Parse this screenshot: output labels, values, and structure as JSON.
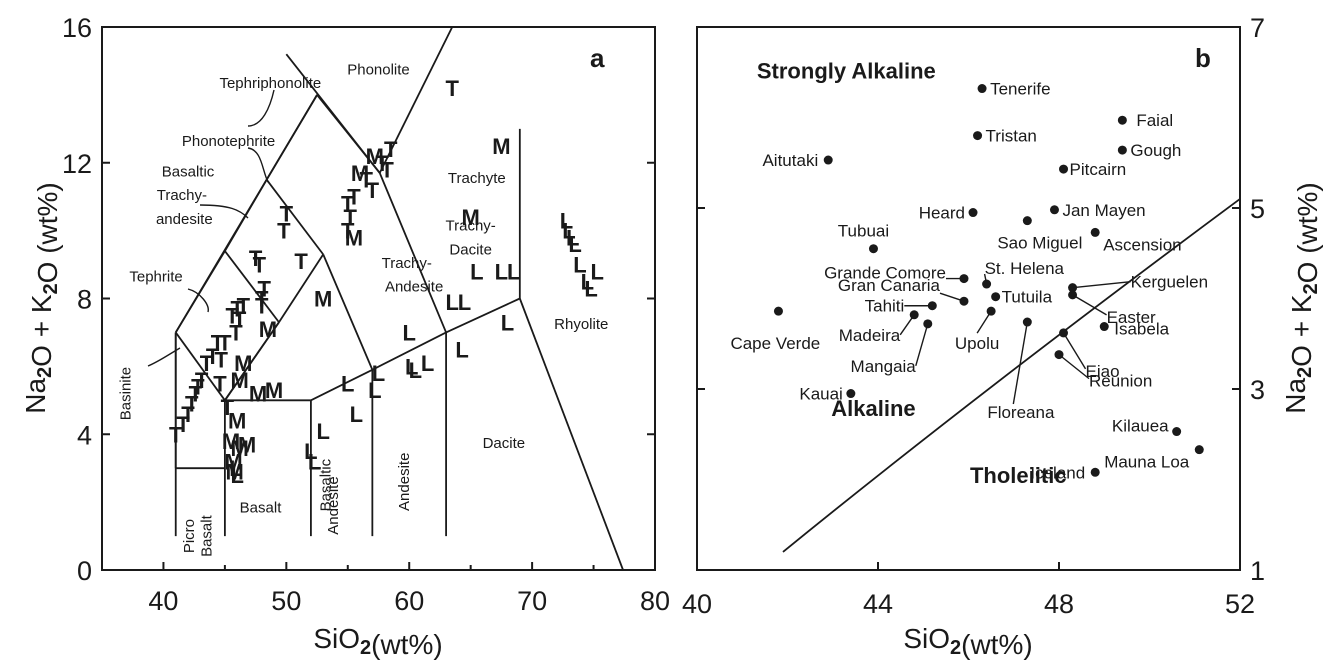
{
  "chart_data": [
    {
      "type": "scatter",
      "panel_label": "a",
      "xlabel": "SiO2(wt%)",
      "ylabel": "Na2O + K2O (wt%)",
      "xlim": [
        35,
        80
      ],
      "ylim": [
        0,
        16
      ],
      "xticks": [
        "40",
        "50",
        "60",
        "70",
        "80"
      ],
      "yticks": [
        "0",
        "4",
        "8",
        "12",
        "16"
      ],
      "fields": [
        {
          "name": "Phonolite",
          "x": 57.5,
          "y": 14.6
        },
        {
          "name": "Tephriphonolite",
          "x": 48.7,
          "y": 14.2
        },
        {
          "name": "Phonotephrite",
          "x": 45.3,
          "y": 12.5
        },
        {
          "name": "Basaltic",
          "x": 42.0,
          "y": 11.6
        },
        {
          "name": "Trachy-",
          "x": 41.5,
          "y": 10.9
        },
        {
          "name": "andesite",
          "x": 41.7,
          "y": 10.2
        },
        {
          "name": "Trachyte",
          "x": 65.5,
          "y": 11.4
        },
        {
          "name": "Trachy-",
          "x": 65.0,
          "y": 10.0
        },
        {
          "name": "Dacite",
          "x": 65.0,
          "y": 9.3
        },
        {
          "name": "Tephrite",
          "x": 39.4,
          "y": 8.5
        },
        {
          "name": "Trachy-",
          "x": 59.8,
          "y": 8.9
        },
        {
          "name": "Andesite",
          "x": 60.4,
          "y": 8.2
        },
        {
          "name": "Basinite",
          "x": 37.3,
          "y": 5.2
        },
        {
          "name": "Rhyolite",
          "x": 74.0,
          "y": 7.1
        },
        {
          "name": "Basaltic",
          "x": 53.6,
          "y": 2.5
        },
        {
          "name": "Andesite",
          "x": 54.2,
          "y": 1.9
        },
        {
          "name": "Andesite",
          "x": 60.0,
          "y": 2.6
        },
        {
          "name": "Dacite",
          "x": 67.7,
          "y": 3.6
        },
        {
          "name": "Basalt",
          "x": 47.9,
          "y": 1.7
        },
        {
          "name": "Picro",
          "x": 42.5,
          "y": 1.0
        },
        {
          "name": "Basalt",
          "x": 43.9,
          "y": 1.0
        }
      ],
      "series": [
        {
          "name": "T",
          "points": [
            [
              41.0,
              4.0
            ],
            [
              41.6,
              4.3
            ],
            [
              42.0,
              4.6
            ],
            [
              42.3,
              4.9
            ],
            [
              42.6,
              5.2
            ],
            [
              42.8,
              5.4
            ],
            [
              43.1,
              5.6
            ],
            [
              43.5,
              6.1
            ],
            [
              44.0,
              6.3
            ],
            [
              44.4,
              6.7
            ],
            [
              44.7,
              6.2
            ],
            [
              45.0,
              6.7
            ],
            [
              45.2,
              4.8
            ],
            [
              45.6,
              7.5
            ],
            [
              45.9,
              7.0
            ],
            [
              46.2,
              7.4
            ],
            [
              46.5,
              7.8
            ],
            [
              44.6,
              5.5
            ],
            [
              46.0,
              7.7
            ],
            [
              47.5,
              9.2
            ],
            [
              48.0,
              8.0
            ],
            [
              47.8,
              9.0
            ],
            [
              48.2,
              8.3
            ],
            [
              48.0,
              7.8
            ],
            [
              50.0,
              10.5
            ],
            [
              49.8,
              10.0
            ],
            [
              51.2,
              9.1
            ],
            [
              55.0,
              10.8
            ],
            [
              55.2,
              10.4
            ],
            [
              55.0,
              10.0
            ],
            [
              55.5,
              11.0
            ],
            [
              56.5,
              11.5
            ],
            [
              57.0,
              11.2
            ],
            [
              57.8,
              12.0
            ],
            [
              58.2,
              11.8
            ],
            [
              58.5,
              12.4
            ],
            [
              63.5,
              14.2
            ]
          ]
        },
        {
          "name": "M",
          "points": [
            [
              56.0,
              11.7
            ],
            [
              57.2,
              12.2
            ],
            [
              55.5,
              9.8
            ],
            [
              53.0,
              8.0
            ],
            [
              48.5,
              7.1
            ],
            [
              46.5,
              6.1
            ],
            [
              46.2,
              5.6
            ],
            [
              47.7,
              5.2
            ],
            [
              49.0,
              5.3
            ],
            [
              46.0,
              4.4
            ],
            [
              45.5,
              3.8
            ],
            [
              46.2,
              3.6
            ],
            [
              46.8,
              3.7
            ],
            [
              45.7,
              3.2
            ],
            [
              45.8,
              2.9
            ],
            [
              67.5,
              12.5
            ],
            [
              65.0,
              10.4
            ]
          ]
        },
        {
          "name": "L",
          "points": [
            [
              45.9,
              3.0
            ],
            [
              46.0,
              2.8
            ],
            [
              52.0,
              3.5
            ],
            [
              52.3,
              3.2
            ],
            [
              53.0,
              4.1
            ],
            [
              55.0,
              5.5
            ],
            [
              55.7,
              4.6
            ],
            [
              57.2,
              5.3
            ],
            [
              57.5,
              5.8
            ],
            [
              60.2,
              6.0
            ],
            [
              60.5,
              5.9
            ],
            [
              61.5,
              6.1
            ],
            [
              60.0,
              7.0
            ],
            [
              63.5,
              7.9
            ],
            [
              64.5,
              7.9
            ],
            [
              65.5,
              8.8
            ],
            [
              67.5,
              8.8
            ],
            [
              68.5,
              8.8
            ],
            [
              64.3,
              6.5
            ],
            [
              68.0,
              7.3
            ],
            [
              72.8,
              10.3
            ],
            [
              73.0,
              10.0
            ],
            [
              73.3,
              9.8
            ],
            [
              73.5,
              9.6
            ],
            [
              73.9,
              9.0
            ],
            [
              74.5,
              8.5
            ],
            [
              74.8,
              8.3
            ],
            [
              75.3,
              8.8
            ]
          ]
        }
      ]
    },
    {
      "type": "scatter",
      "panel_label": "b",
      "xlabel": "SiO2(wt%)",
      "ylabel": "Na2O + K2O (wt%)",
      "xlim": [
        40,
        52
      ],
      "ylim": [
        1,
        7
      ],
      "xticks": [
        "40",
        "44",
        "48",
        "52"
      ],
      "yticks": [
        "1",
        "3",
        "5",
        "7"
      ],
      "regions": [
        {
          "name": "Strongly Alkaline",
          "x": 43.3,
          "y": 6.43
        },
        {
          "name": "Alkaline",
          "x": 43.9,
          "y": 2.7
        },
        {
          "name": "Tholeiitic",
          "x": 47.1,
          "y": 1.96
        }
      ],
      "divider_line": [
        [
          41.9,
          1.2
        ],
        [
          52.0,
          5.1
        ]
      ],
      "points": [
        {
          "name": "Tenerife",
          "x": 46.3,
          "y": 6.32
        },
        {
          "name": "Faial",
          "x": 49.4,
          "y": 5.97
        },
        {
          "name": "Tristan",
          "x": 46.2,
          "y": 5.8
        },
        {
          "name": "Gough",
          "x": 49.4,
          "y": 5.64
        },
        {
          "name": "Aitutaki",
          "x": 42.9,
          "y": 5.53
        },
        {
          "name": "Pitcairn",
          "x": 48.1,
          "y": 5.43
        },
        {
          "name": "Jan Mayen",
          "x": 47.9,
          "y": 4.98
        },
        {
          "name": "Heard",
          "x": 46.1,
          "y": 4.95
        },
        {
          "name": "Sao Miguel",
          "x": 47.3,
          "y": 4.86
        },
        {
          "name": "Ascension",
          "x": 48.8,
          "y": 4.73
        },
        {
          "name": "Tubuai",
          "x": 43.9,
          "y": 4.55
        },
        {
          "name": "Grande Comore",
          "x": 45.9,
          "y": 4.22
        },
        {
          "name": "St. Helena",
          "x": 46.4,
          "y": 4.16
        },
        {
          "name": "Kerguelen",
          "x": 48.3,
          "y": 4.12
        },
        {
          "name": "Tutuila",
          "x": 46.6,
          "y": 4.02
        },
        {
          "name": "Easter",
          "x": 48.3,
          "y": 4.04
        },
        {
          "name": "Gran Canaria",
          "x": 45.9,
          "y": 3.97
        },
        {
          "name": "Tahiti",
          "x": 45.2,
          "y": 3.92
        },
        {
          "name": "Cape Verde",
          "x": 41.8,
          "y": 3.86
        },
        {
          "name": "Madeira",
          "x": 44.8,
          "y": 3.82
        },
        {
          "name": "Upolu",
          "x": 46.5,
          "y": 3.86
        },
        {
          "name": "Floreana",
          "x": 47.3,
          "y": 3.74
        },
        {
          "name": "Isabela",
          "x": 49.0,
          "y": 3.69
        },
        {
          "name": "Mangaia",
          "x": 45.1,
          "y": 3.72
        },
        {
          "name": "Eiao",
          "x": 48.1,
          "y": 3.62
        },
        {
          "name": "Reunion",
          "x": 48.0,
          "y": 3.38
        },
        {
          "name": "Kauai",
          "x": 43.4,
          "y": 2.95
        },
        {
          "name": "Kilauea",
          "x": 50.6,
          "y": 2.53
        },
        {
          "name": "Mauna Loa",
          "x": 51.1,
          "y": 2.33
        },
        {
          "name": "Iceland",
          "x": 48.8,
          "y": 2.08
        }
      ]
    }
  ]
}
